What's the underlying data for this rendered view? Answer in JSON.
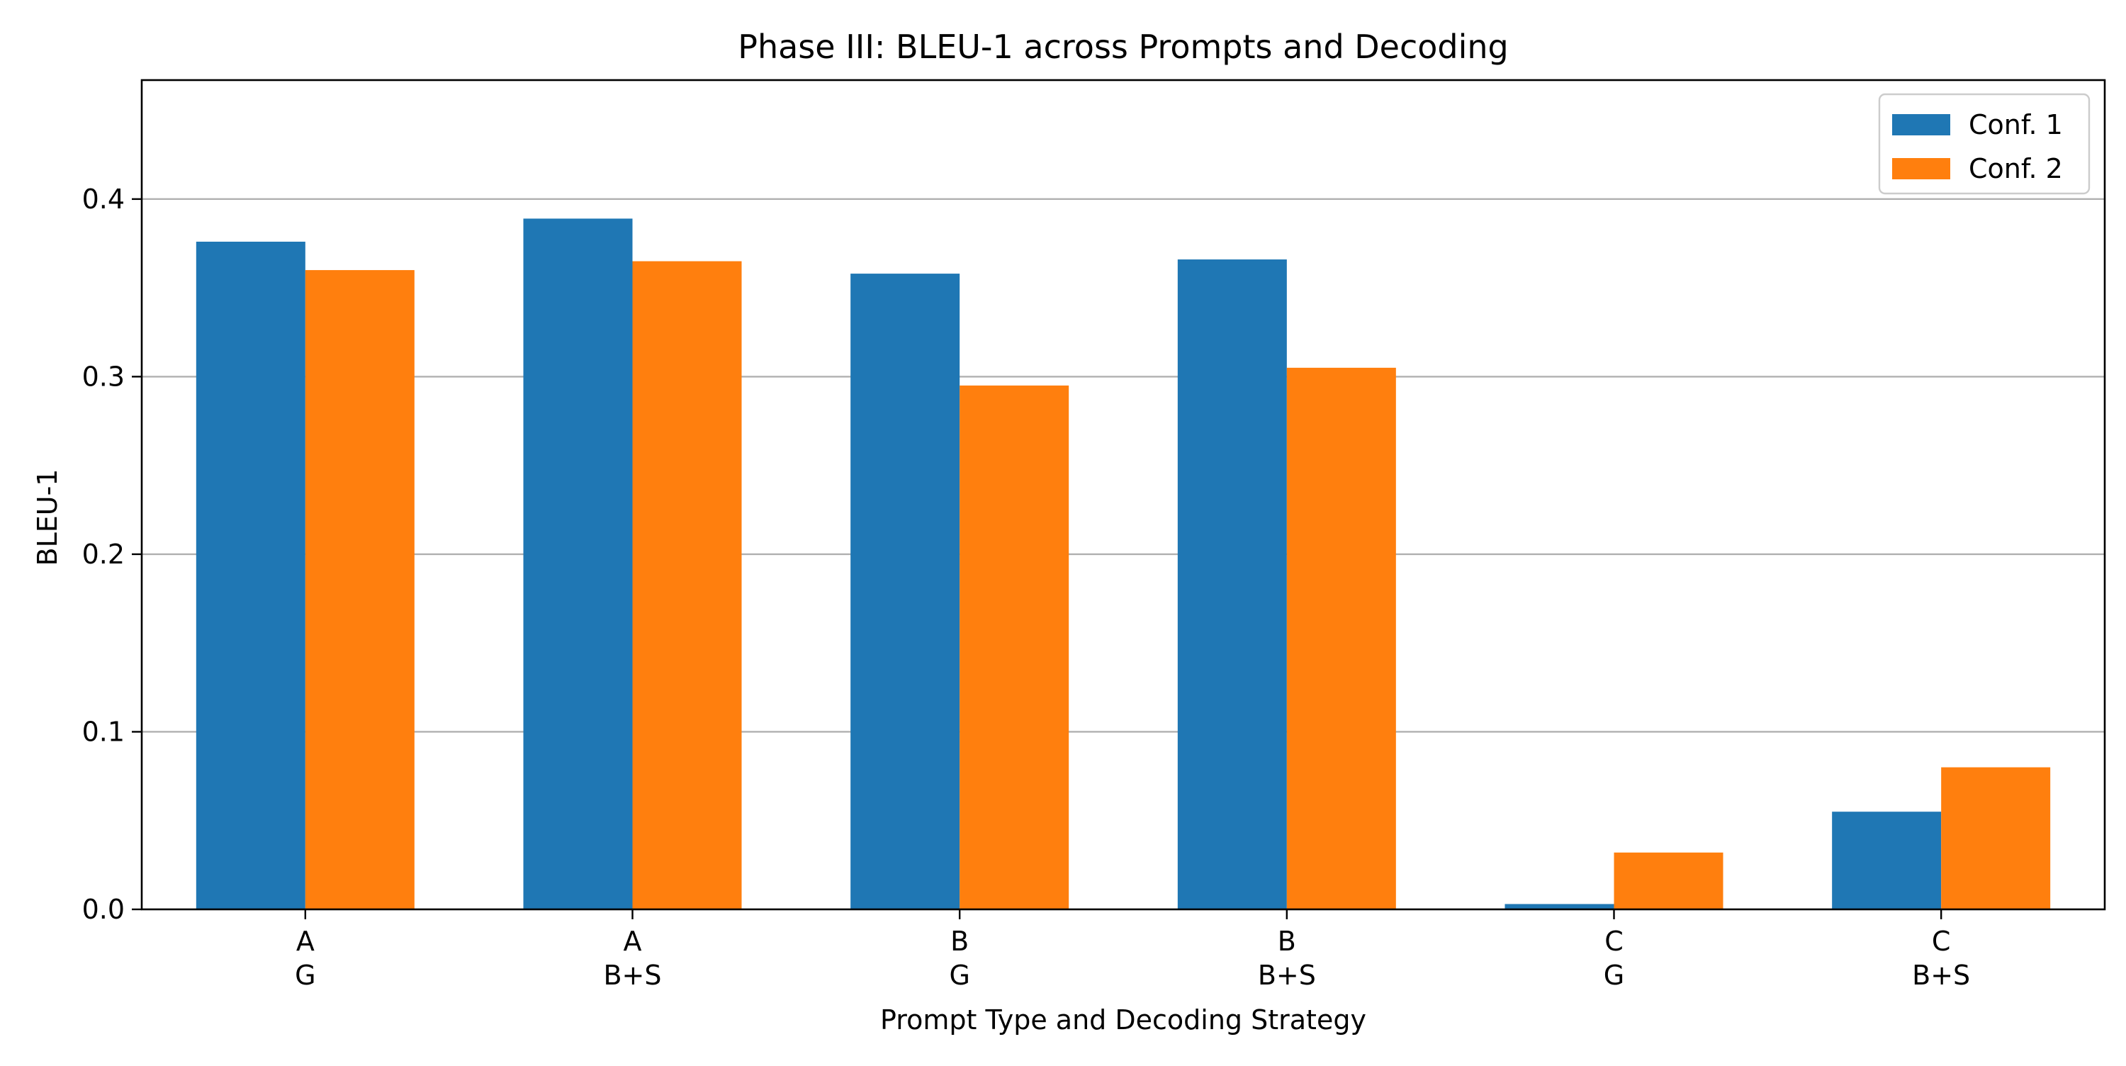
{
  "chart_data": {
    "type": "bar",
    "title": "Phase III: BLEU-1 across Prompts and Decoding",
    "xlabel": "Prompt Type and Decoding Strategy",
    "ylabel": "BLEU-1",
    "categories": [
      {
        "line1": "A",
        "line2": "G"
      },
      {
        "line1": "A",
        "line2": "B+S"
      },
      {
        "line1": "B",
        "line2": "G"
      },
      {
        "line1": "B",
        "line2": "B+S"
      },
      {
        "line1": "C",
        "line2": "G"
      },
      {
        "line1": "C",
        "line2": "B+S"
      }
    ],
    "series": [
      {
        "name": "Conf. 1",
        "color": "#1f77b4",
        "values": [
          0.376,
          0.389,
          0.358,
          0.366,
          0.003,
          0.055
        ]
      },
      {
        "name": "Conf. 2",
        "color": "#ff7f0e",
        "values": [
          0.36,
          0.365,
          0.295,
          0.305,
          0.032,
          0.08
        ]
      }
    ],
    "ylim": [
      0,
      0.467
    ],
    "yticks": [
      "0.0",
      "0.1",
      "0.2",
      "0.3",
      "0.4"
    ],
    "ytick_values": [
      0.0,
      0.1,
      0.2,
      0.3,
      0.4
    ],
    "grid": "horizontal",
    "legend_position": "top-right"
  }
}
